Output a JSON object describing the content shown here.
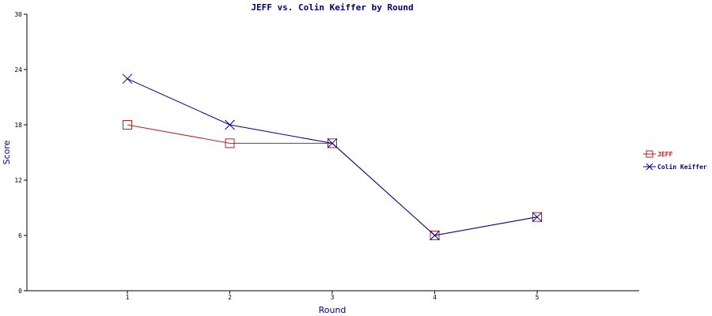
{
  "chart_data": {
    "type": "line",
    "title": "JEFF vs. Colin Keiffer by Round",
    "xlabel": "Round",
    "ylabel": "Score",
    "x": [
      1,
      2,
      3,
      4,
      5
    ],
    "ylim": [
      0,
      30
    ],
    "yticks": [
      0,
      6,
      12,
      18,
      24,
      30
    ],
    "grid": false,
    "legend_position": "right",
    "series": [
      {
        "name": "JEFF",
        "values": [
          18,
          16,
          16,
          6,
          8
        ],
        "color": "#b22222",
        "marker": "square"
      },
      {
        "name": "Colin Keiffer",
        "values": [
          23,
          18,
          16,
          6,
          8
        ],
        "color": "#00008b",
        "marker": "x"
      }
    ]
  }
}
